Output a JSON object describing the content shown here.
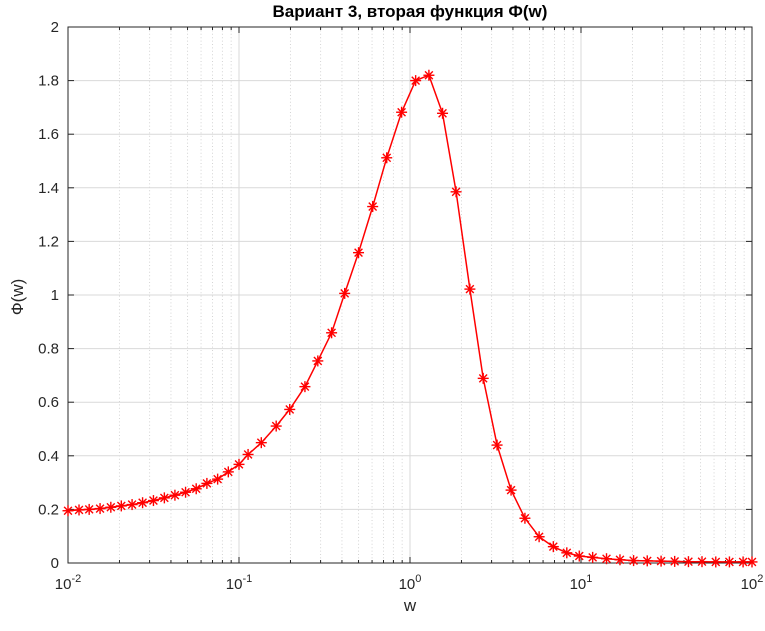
{
  "figure": {
    "title": "Вариант 3, вторая функция Ф(w)",
    "xlabel": "w",
    "ylabel": "Ф(w)"
  },
  "chart_data": {
    "type": "line",
    "title": "Вариант 3, вторая функция Ф(w)",
    "xlabel": "w",
    "ylabel": "Ф(w)",
    "x_scale": "log10",
    "y_scale": "linear",
    "xlim": [
      0.01,
      100
    ],
    "ylim": [
      0,
      2
    ],
    "x_tick_exponents": [
      -2,
      -1,
      0,
      1,
      2
    ],
    "x_tick_base": "10",
    "y_ticks": [
      0,
      0.2,
      0.4,
      0.6,
      0.8,
      1,
      1.2,
      1.4,
      1.6,
      1.8,
      2
    ],
    "y_tick_labels": [
      "0",
      "0.2",
      "0.4",
      "0.6",
      "0.8",
      "1",
      "1.2",
      "1.4",
      "1.6",
      "1.8",
      "2"
    ],
    "grid": "major on, x-minor dotted on",
    "legend": "none",
    "series": [
      {
        "name": "Ф(w)",
        "line_color": "#ff0000",
        "marker": "asterisk",
        "x": [
          0.01,
          0.0116,
          0.0133,
          0.0154,
          0.0178,
          0.0205,
          0.0237,
          0.0273,
          0.0316,
          0.0366,
          0.0422,
          0.0487,
          0.0562,
          0.0649,
          0.075,
          0.0866,
          0.1,
          0.113,
          0.135,
          0.165,
          0.198,
          0.243,
          0.289,
          0.348,
          0.415,
          0.5,
          0.605,
          0.731,
          0.893,
          1.079,
          1.29,
          1.55,
          1.86,
          2.24,
          2.68,
          3.23,
          3.9,
          4.7,
          5.69,
          6.89,
          8.26,
          9.77,
          11.7,
          14.1,
          16.9,
          20.3,
          24.4,
          29.4,
          35.3,
          42.5,
          51,
          61.4,
          73.8,
          88.7,
          100
        ],
        "y": [
          0.195,
          0.198,
          0.2,
          0.203,
          0.208,
          0.213,
          0.218,
          0.225,
          0.233,
          0.243,
          0.253,
          0.264,
          0.277,
          0.297,
          0.313,
          0.34,
          0.368,
          0.405,
          0.449,
          0.511,
          0.573,
          0.658,
          0.754,
          0.859,
          1.006,
          1.158,
          1.33,
          1.512,
          1.682,
          1.8,
          1.82,
          1.678,
          1.385,
          1.022,
          0.689,
          0.44,
          0.272,
          0.167,
          0.098,
          0.061,
          0.038,
          0.026,
          0.021,
          0.016,
          0.012,
          0.009,
          0.008,
          0.007,
          0.006,
          0.005,
          0.005,
          0.004,
          0.004,
          0.004,
          0.004
        ]
      }
    ]
  },
  "colors": {
    "line": "#ff0000",
    "axis": "#262626",
    "grid_major": "#d9d9d9",
    "grid_minor": "#d4d4d4",
    "title": "#000000",
    "background": "#ffffff"
  }
}
